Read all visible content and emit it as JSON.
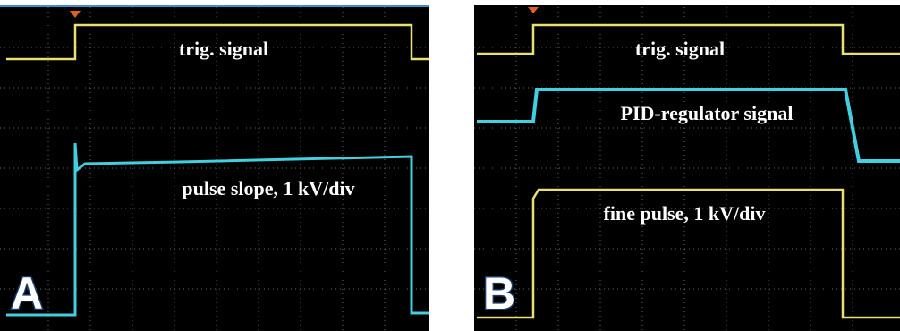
{
  "panels": [
    {
      "label": "A",
      "annotations": [
        "trig. signal",
        "pulse slope, 1 kV/div"
      ]
    },
    {
      "label": "B",
      "annotations": [
        "trig. signal",
        "PID-regulator signal",
        "fine pulse, 1 kV/div"
      ]
    }
  ]
}
